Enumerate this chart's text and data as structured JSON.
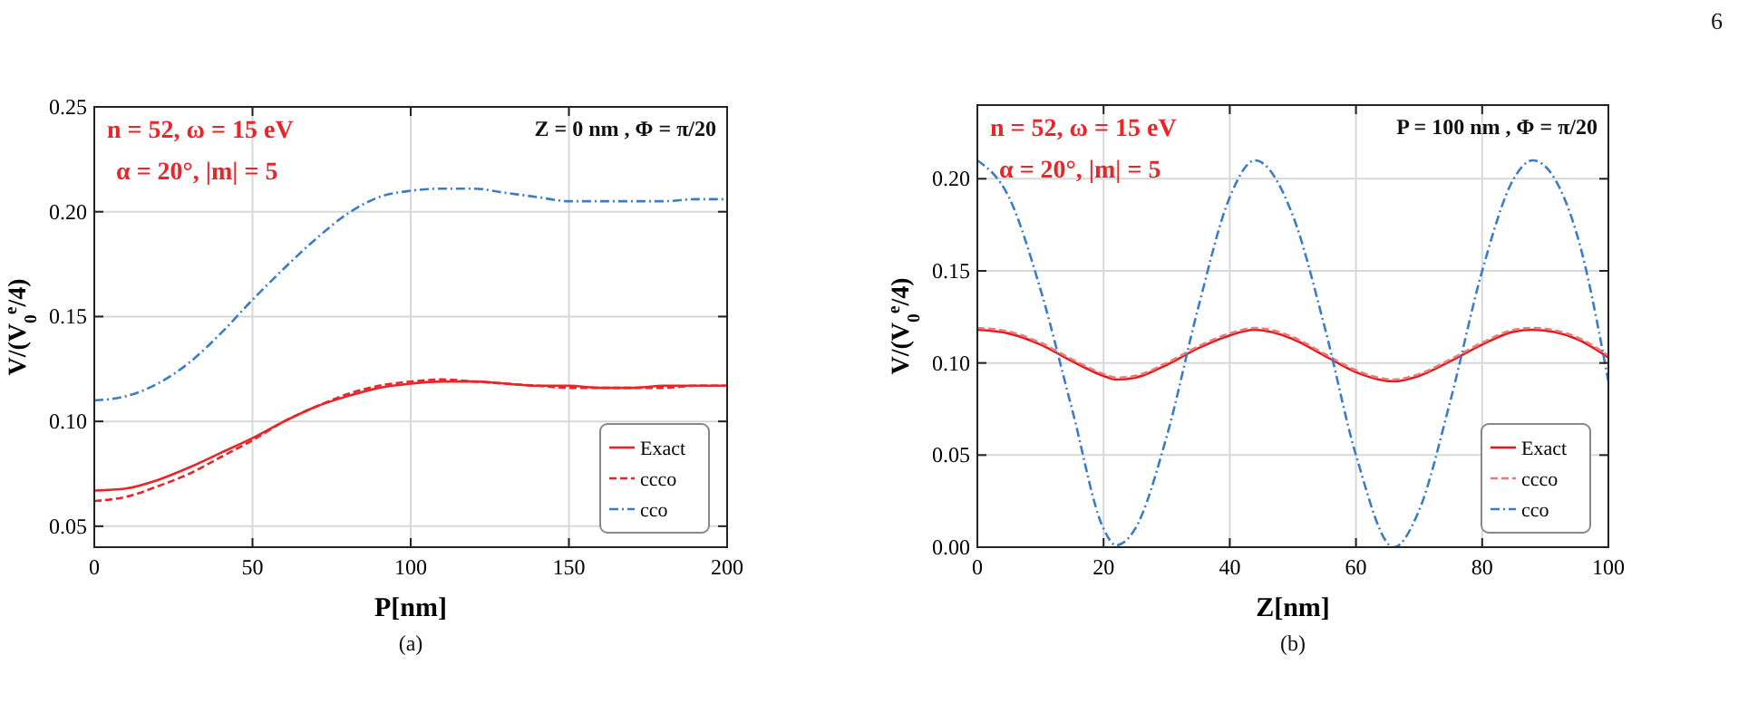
{
  "chart_data": [
    {
      "type": "line",
      "xlabel": "P[nm]",
      "ylabel": "V/(V$_{0}$$^{e}$/4)",
      "annotations": [
        "n = 52, ω = 15 eV",
        "α = 20°, |m| = 5",
        "Z = 0 nm , Φ = π/20",
        "(a)"
      ],
      "x": [
        0,
        10,
        20,
        30,
        40,
        50,
        60,
        70,
        80,
        90,
        100,
        110,
        120,
        130,
        140,
        150,
        160,
        170,
        180,
        190,
        200
      ],
      "xlim": [
        0,
        200
      ],
      "xticks": [
        0,
        50,
        100,
        150,
        200
      ],
      "ylim": [
        0.04,
        0.25
      ],
      "yticks": [
        {
          "value": 0.05,
          "label": "0.05"
        },
        {
          "value": 0.1,
          "label": "0.10"
        },
        {
          "value": 0.15,
          "label": "0.15"
        },
        {
          "value": 0.2,
          "label": "0.20"
        },
        {
          "value": 0.25,
          "label": "0.25"
        }
      ],
      "grid": true,
      "legend": "bottom right",
      "series": [
        {
          "name": "Exact",
          "color": "#e8262a",
          "line_style": "solid",
          "values": [
            0.067,
            0.068,
            0.072,
            0.078,
            0.085,
            0.092,
            0.1,
            0.107,
            0.112,
            0.116,
            0.118,
            0.119,
            0.119,
            0.118,
            0.117,
            0.117,
            0.116,
            0.116,
            0.117,
            0.117,
            0.117
          ]
        },
        {
          "name": "ccco",
          "color": "#e8262a",
          "line_style": "dashed",
          "values": [
            0.062,
            0.064,
            0.069,
            0.075,
            0.083,
            0.091,
            0.1,
            0.107,
            0.113,
            0.117,
            0.119,
            0.12,
            0.119,
            0.118,
            0.117,
            0.116,
            0.116,
            0.116,
            0.116,
            0.117,
            0.117
          ]
        },
        {
          "name": "cco",
          "color": "#3b7dc4",
          "line_style": "dotted",
          "values": [
            0.11,
            0.112,
            0.118,
            0.128,
            0.142,
            0.158,
            0.173,
            0.187,
            0.199,
            0.207,
            0.21,
            0.211,
            0.211,
            0.209,
            0.207,
            0.205,
            0.205,
            0.205,
            0.205,
            0.206,
            0.206
          ]
        }
      ]
    },
    {
      "type": "line",
      "xlabel": "Z[nm]",
      "ylabel": "V/(V$_{0}$$^{e}$/4)",
      "annotations": [
        "n = 52, ω = 15 eV",
        "α = 20°, |m| = 5",
        "P = 100 nm , Φ = π/20",
        "(b)",
        "6"
      ],
      "x": [
        0,
        5,
        10,
        15,
        20,
        22,
        25,
        30,
        35,
        40,
        44,
        50,
        55,
        60,
        66,
        70,
        75,
        80,
        85,
        88,
        95,
        100
      ],
      "xlim": [
        0,
        100
      ],
      "xticks": [
        0,
        20,
        40,
        60,
        80,
        100
      ],
      "ylim": [
        0,
        0.24
      ],
      "yticks": [
        {
          "value": 0,
          "label": "0.00"
        },
        {
          "value": 0.05,
          "label": "0.05"
        },
        {
          "value": 0.1,
          "label": "0.10"
        },
        {
          "value": 0.15,
          "label": "0.15"
        },
        {
          "value": 0.2,
          "label": "0.20"
        }
      ],
      "grid": true,
      "legend": "bottom right",
      "series": [
        {
          "name": "Exact",
          "color": "#e01b1f",
          "line_style": "solid",
          "values": [
            0.118,
            0.116,
            0.11,
            0.101,
            0.093,
            0.091,
            0.092,
            0.099,
            0.108,
            0.115,
            0.118,
            0.113,
            0.104,
            0.095,
            0.09,
            0.093,
            0.101,
            0.11,
            0.117,
            0.118,
            0.113,
            0.103
          ]
        },
        {
          "name": "ccco",
          "color": "#f07a7a",
          "line_style": "dashed",
          "values": [
            0.119,
            0.117,
            0.111,
            0.102,
            0.094,
            0.092,
            0.093,
            0.1,
            0.109,
            0.116,
            0.119,
            0.114,
            0.105,
            0.096,
            0.091,
            0.094,
            0.102,
            0.111,
            0.118,
            0.119,
            0.114,
            0.104
          ]
        },
        {
          "name": "cco",
          "color": "#3b7dc4",
          "line_style": "dotted",
          "values": [
            0.21,
            0.19,
            0.14,
            0.075,
            0.01,
            0.001,
            0.01,
            0.06,
            0.13,
            0.19,
            0.21,
            0.18,
            0.12,
            0.05,
            0,
            0.02,
            0.08,
            0.15,
            0.2,
            0.21,
            0.17,
            0.09
          ]
        }
      ]
    }
  ]
}
